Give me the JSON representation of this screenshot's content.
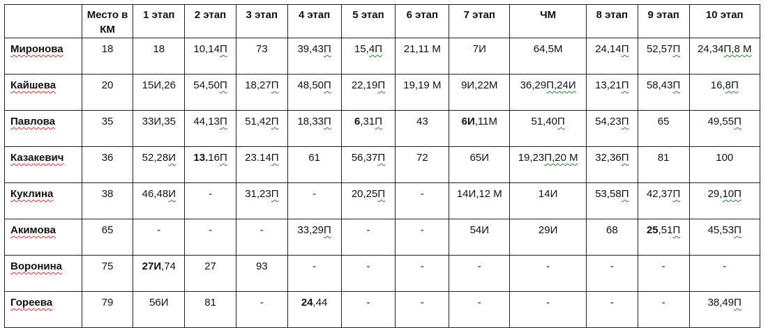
{
  "table": {
    "headers": [
      "",
      "Место в КМ",
      "1 этап",
      "2 этап",
      "3 этап",
      "4 этап",
      "5 этап",
      "6 этап",
      "7 этап",
      "ЧМ",
      "8 этап",
      "9 этап",
      "10 этап"
    ],
    "rows": [
      {
        "name": "Миронова",
        "place": "18",
        "cells": [
          {
            "b": "",
            "t": "18",
            "w": ""
          },
          {
            "b": "",
            "t": "10,14",
            "w": "П"
          },
          {
            "b": "",
            "t": "73",
            "w": ""
          },
          {
            "b": "",
            "t": "39,43",
            "w": "П"
          },
          {
            "b": "",
            "t": "15,",
            "w": "4П"
          },
          {
            "b": "",
            "t": "21,11 М",
            "w": ""
          },
          {
            "b": "",
            "t": "7И",
            "w": ""
          },
          {
            "b": "",
            "t": "64,5М",
            "w": ""
          },
          {
            "b": "",
            "t": "24,14",
            "w": "П"
          },
          {
            "b": "",
            "t": "52,57",
            "w": "П"
          },
          {
            "b": "",
            "t": "24,34",
            "w": "П,8 М"
          }
        ]
      },
      {
        "name": "Кайшева",
        "place": "20",
        "cells": [
          {
            "b": "",
            "t": "15И,26",
            "w": ""
          },
          {
            "b": "",
            "t": "54,50",
            "w": "П"
          },
          {
            "b": "",
            "t": "18,27",
            "w": "П"
          },
          {
            "b": "",
            "t": "48,50",
            "w": "П"
          },
          {
            "b": "",
            "t": "22,19",
            "w": "П"
          },
          {
            "b": "",
            "t": "19,19 М",
            "w": ""
          },
          {
            "b": "",
            "t": "9И,22М",
            "w": ""
          },
          {
            "b": "",
            "t": "36,29",
            "w": "П,24И"
          },
          {
            "b": "",
            "t": "13,21",
            "w": "П"
          },
          {
            "b": "",
            "t": "58,43",
            "w": "П"
          },
          {
            "b": "",
            "t": "16,",
            "w": "8П"
          }
        ]
      },
      {
        "name": "Павлова",
        "place": "35",
        "cells": [
          {
            "b": "",
            "t": "33И,35",
            "w": ""
          },
          {
            "b": "",
            "t": "44,13",
            "w": "П"
          },
          {
            "b": "",
            "t": "51,42",
            "w": "П"
          },
          {
            "b": "",
            "t": "18,33",
            "w": "П"
          },
          {
            "b": "6",
            "t": ",31",
            "w": "П"
          },
          {
            "b": "",
            "t": "43",
            "w": ""
          },
          {
            "b": "6И",
            "t": ",11М",
            "w": ""
          },
          {
            "b": "",
            "t": "51,40",
            "w": "П"
          },
          {
            "b": "",
            "t": "54,23",
            "w": "П"
          },
          {
            "b": "",
            "t": "65",
            "w": ""
          },
          {
            "b": "",
            "t": "49,55",
            "w": "П"
          }
        ]
      },
      {
        "name": "Казакевич",
        "place": "36",
        "cells": [
          {
            "b": "",
            "t": "52,28",
            "w": "И"
          },
          {
            "b": "13.",
            "t": "16",
            "w": "П"
          },
          {
            "b": "",
            "t": "23.14",
            "w": "П"
          },
          {
            "b": "",
            "t": "61",
            "w": ""
          },
          {
            "b": "",
            "t": "56,37",
            "w": "П"
          },
          {
            "b": "",
            "t": "72",
            "w": ""
          },
          {
            "b": "",
            "t": "65И",
            "w": ""
          },
          {
            "b": "",
            "t": "19,23",
            "w": "П,20 М"
          },
          {
            "b": "",
            "t": "32,36",
            "w": "П"
          },
          {
            "b": "",
            "t": "81",
            "w": ""
          },
          {
            "b": "",
            "t": "100",
            "w": ""
          }
        ]
      },
      {
        "name": "Куклина",
        "place": "38",
        "cells": [
          {
            "b": "",
            "t": "46,48",
            "w": "И"
          },
          {
            "b": "",
            "t": "-",
            "w": ""
          },
          {
            "b": "",
            "t": "31,23",
            "w": "П"
          },
          {
            "b": "",
            "t": "-",
            "w": ""
          },
          {
            "b": "",
            "t": "20,25",
            "w": "П"
          },
          {
            "b": "",
            "t": "-",
            "w": ""
          },
          {
            "b": "",
            "t": "14И,12 М",
            "w": ""
          },
          {
            "b": "",
            "t": "14И",
            "w": ""
          },
          {
            "b": "",
            "t": "53,58",
            "w": "П"
          },
          {
            "b": "",
            "t": "42,37",
            "w": "П"
          },
          {
            "b": "",
            "t": "29,",
            "w": "10П"
          }
        ]
      },
      {
        "name": "Акимова",
        "place": "65",
        "cells": [
          {
            "b": "",
            "t": "-",
            "w": ""
          },
          {
            "b": "",
            "t": "-",
            "w": ""
          },
          {
            "b": "",
            "t": "-",
            "w": ""
          },
          {
            "b": "",
            "t": "33,29",
            "w": "П"
          },
          {
            "b": "",
            "t": "-",
            "w": ""
          },
          {
            "b": "",
            "t": "-",
            "w": ""
          },
          {
            "b": "",
            "t": "54И",
            "w": ""
          },
          {
            "b": "",
            "t": "29И",
            "w": ""
          },
          {
            "b": "",
            "t": "68",
            "w": ""
          },
          {
            "b": "25",
            "t": ",51",
            "w": "П"
          },
          {
            "b": "",
            "t": "45,53",
            "w": "П"
          }
        ]
      },
      {
        "name": "Воронина",
        "place": "75",
        "cells": [
          {
            "b": "27И",
            "t": ",74",
            "w": ""
          },
          {
            "b": "",
            "t": "27",
            "w": ""
          },
          {
            "b": "",
            "t": "93",
            "w": ""
          },
          {
            "b": "",
            "t": "-",
            "w": ""
          },
          {
            "b": "",
            "t": "-",
            "w": ""
          },
          {
            "b": "",
            "t": "-",
            "w": ""
          },
          {
            "b": "",
            "t": "-",
            "w": ""
          },
          {
            "b": "",
            "t": "-",
            "w": ""
          },
          {
            "b": "",
            "t": "-",
            "w": ""
          },
          {
            "b": "",
            "t": "-",
            "w": ""
          },
          {
            "b": "",
            "t": "-",
            "w": ""
          }
        ]
      },
      {
        "name": "Гореева",
        "place": "79",
        "cells": [
          {
            "b": "",
            "t": "56И",
            "w": ""
          },
          {
            "b": "",
            "t": "81",
            "w": ""
          },
          {
            "b": "",
            "t": "-",
            "w": ""
          },
          {
            "b": "24",
            "t": ",44",
            "w": ""
          },
          {
            "b": "",
            "t": "-",
            "w": ""
          },
          {
            "b": "",
            "t": "-",
            "w": ""
          },
          {
            "b": "",
            "t": "-",
            "w": ""
          },
          {
            "b": "",
            "t": "-",
            "w": ""
          },
          {
            "b": "",
            "t": "-",
            "w": ""
          },
          {
            "b": "",
            "t": "-",
            "w": ""
          },
          {
            "b": "",
            "t": "38,49",
            "w": "П"
          }
        ]
      }
    ]
  }
}
